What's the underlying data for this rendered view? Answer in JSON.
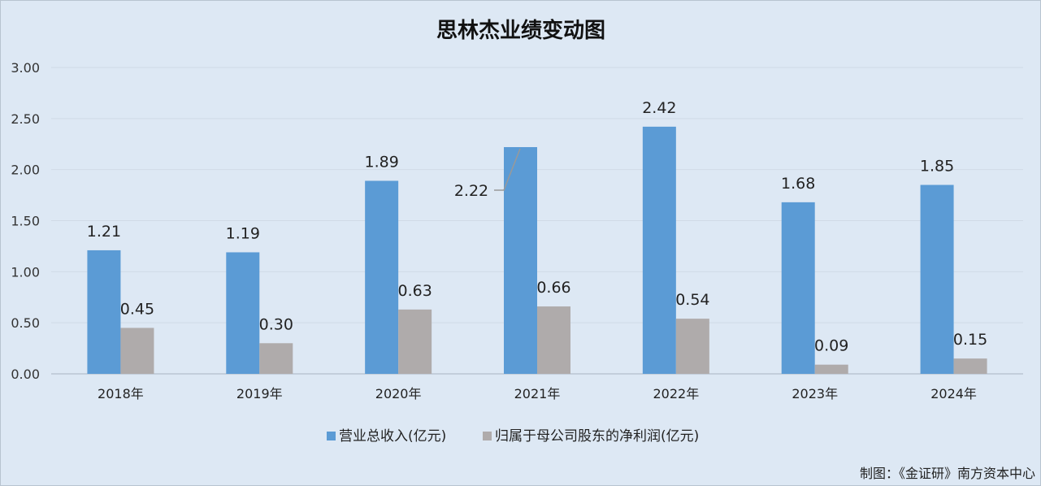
{
  "credit": "制图：《金证研》南方资本中心",
  "colors": {
    "revenue": "#5b9bd5",
    "profit": "#afabab",
    "grid": "#d0dae6",
    "background": "#dde8f4"
  },
  "chart_data": {
    "type": "bar",
    "title": "思林杰业绩变动图",
    "categories": [
      "2018年",
      "2019年",
      "2020年",
      "2021年",
      "2022年",
      "2023年",
      "2024年"
    ],
    "series": [
      {
        "name": "营业总收入(亿元)",
        "values": [
          1.21,
          1.19,
          1.89,
          2.22,
          2.42,
          1.68,
          1.85
        ],
        "labels": [
          "1.21",
          "1.19",
          "1.89",
          "2.22",
          "2.42",
          "1.68",
          "1.85"
        ]
      },
      {
        "name": "归属于母公司股东的净利润(亿元)",
        "values": [
          0.45,
          0.3,
          0.63,
          0.66,
          0.54,
          0.09,
          0.15
        ],
        "labels": [
          "0.45",
          "0.30",
          "0.63",
          "0.66",
          "0.54",
          "0.09",
          "0.15"
        ]
      }
    ],
    "ylim": [
      0,
      3.0
    ],
    "yticks": [
      "0.00",
      "0.50",
      "1.00",
      "1.50",
      "2.00",
      "2.50",
      "3.00"
    ],
    "xlabel": "",
    "ylabel": "",
    "grid": true,
    "legend_position": "bottom"
  }
}
